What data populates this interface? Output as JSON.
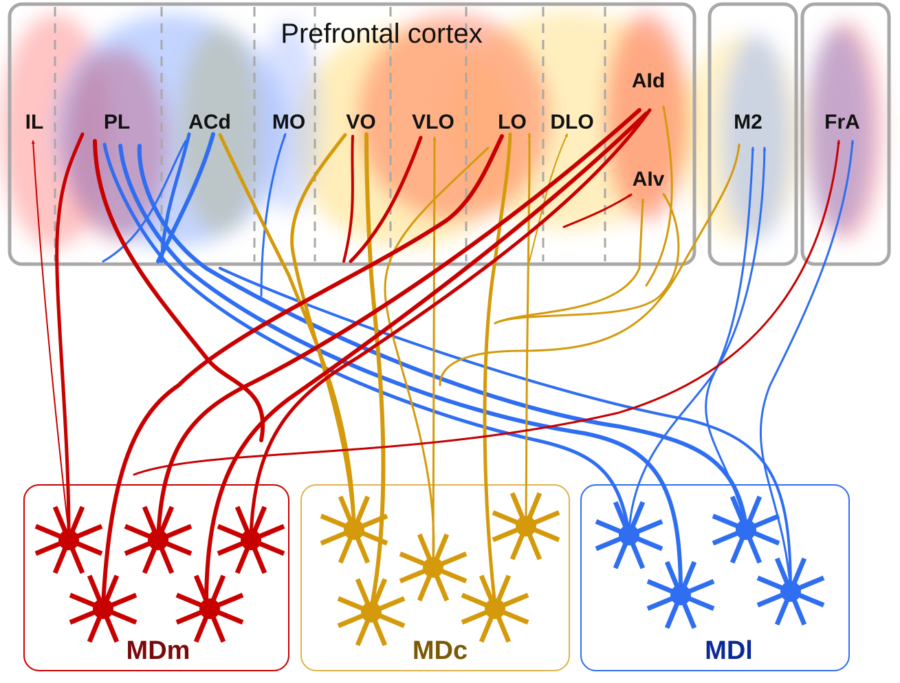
{
  "title": "Prefrontal cortex",
  "regions": {
    "IL": "IL",
    "PL": "PL",
    "ACd": "ACd",
    "MO": "MO",
    "VO": "VO",
    "VLO": "VLO",
    "LO": "LO",
    "DLO": "DLO",
    "AId": "AId",
    "AIv": "AIv",
    "M2": "M2",
    "FrA": "FrA"
  },
  "nuclei": {
    "mdm": {
      "label": "MDm",
      "color": "#c80000",
      "label_color": "#7a0a0a"
    },
    "mdc": {
      "label": "MDc",
      "color": "#d49a0c",
      "label_color": "#7a5a06"
    },
    "mdl": {
      "label": "MDl",
      "color": "#2f6ef0",
      "label_color": "#0c2a96"
    }
  }
}
